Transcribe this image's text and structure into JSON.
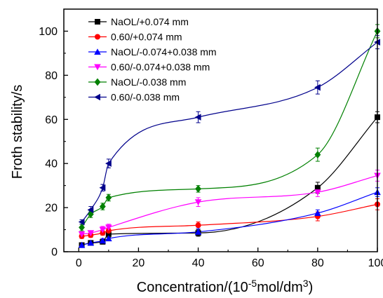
{
  "chart_data": {
    "type": "scatter",
    "title": "",
    "xlabel": "Concentration/(10⁻⁵mol/dm³)",
    "ylabel": "Froth stability/s",
    "xlim": [
      -5,
      100
    ],
    "ylim": [
      0,
      110
    ],
    "xticks": [
      "0",
      "20",
      "40",
      "60",
      "80",
      "100"
    ],
    "yticks": [
      "0",
      "20",
      "40",
      "60",
      "80",
      "100"
    ],
    "grid": false,
    "legend_position": "top-left",
    "fit_curves": true,
    "error_bars": true,
    "x": [
      1,
      4,
      8,
      10,
      40,
      80,
      100
    ],
    "series": [
      {
        "name": "NaOL/+0.074 mm",
        "color": "#000000",
        "marker": "square",
        "values": [
          3,
          4,
          4.5,
          8,
          8.5,
          29,
          61
        ],
        "errors": [
          1,
          1,
          1,
          1.5,
          1.5,
          2.5,
          2.5
        ]
      },
      {
        "name": "0.60/+0.074 mm",
        "color": "#ff0000",
        "marker": "circle",
        "values": [
          7,
          7.5,
          8.5,
          9.5,
          12,
          16,
          21.5
        ],
        "errors": [
          1,
          1,
          1,
          1,
          1.5,
          2,
          2.5
        ]
      },
      {
        "name": "NaOL/-0.074+0.038 mm",
        "color": "#0000ff",
        "marker": "triangle-up",
        "values": [
          3,
          4,
          5,
          6,
          9,
          17.5,
          27
        ],
        "errors": [
          1,
          1,
          1,
          1,
          1.5,
          1.5,
          2
        ]
      },
      {
        "name": "0.60/-0.074+0.038 mm",
        "color": "#ff00ff",
        "marker": "triangle-down",
        "values": [
          8,
          8.5,
          10,
          11,
          22.5,
          27,
          34.5
        ],
        "errors": [
          1,
          1,
          1.5,
          1.5,
          2,
          2,
          2.5
        ]
      },
      {
        "name": "NaOL/-0.038 mm",
        "color": "#008000",
        "marker": "diamond",
        "values": [
          11,
          17,
          20.5,
          24.5,
          28.5,
          44,
          100
        ],
        "errors": [
          1.5,
          1.5,
          1.5,
          1.5,
          1.5,
          3,
          3
        ]
      },
      {
        "name": "0.60/-0.038 mm",
        "color": "#00008b",
        "marker": "triangle-left",
        "values": [
          13.5,
          19,
          29,
          40,
          61,
          74.5,
          95
        ],
        "errors": [
          1,
          1.5,
          1.5,
          2,
          2.5,
          3,
          3
        ]
      }
    ]
  }
}
